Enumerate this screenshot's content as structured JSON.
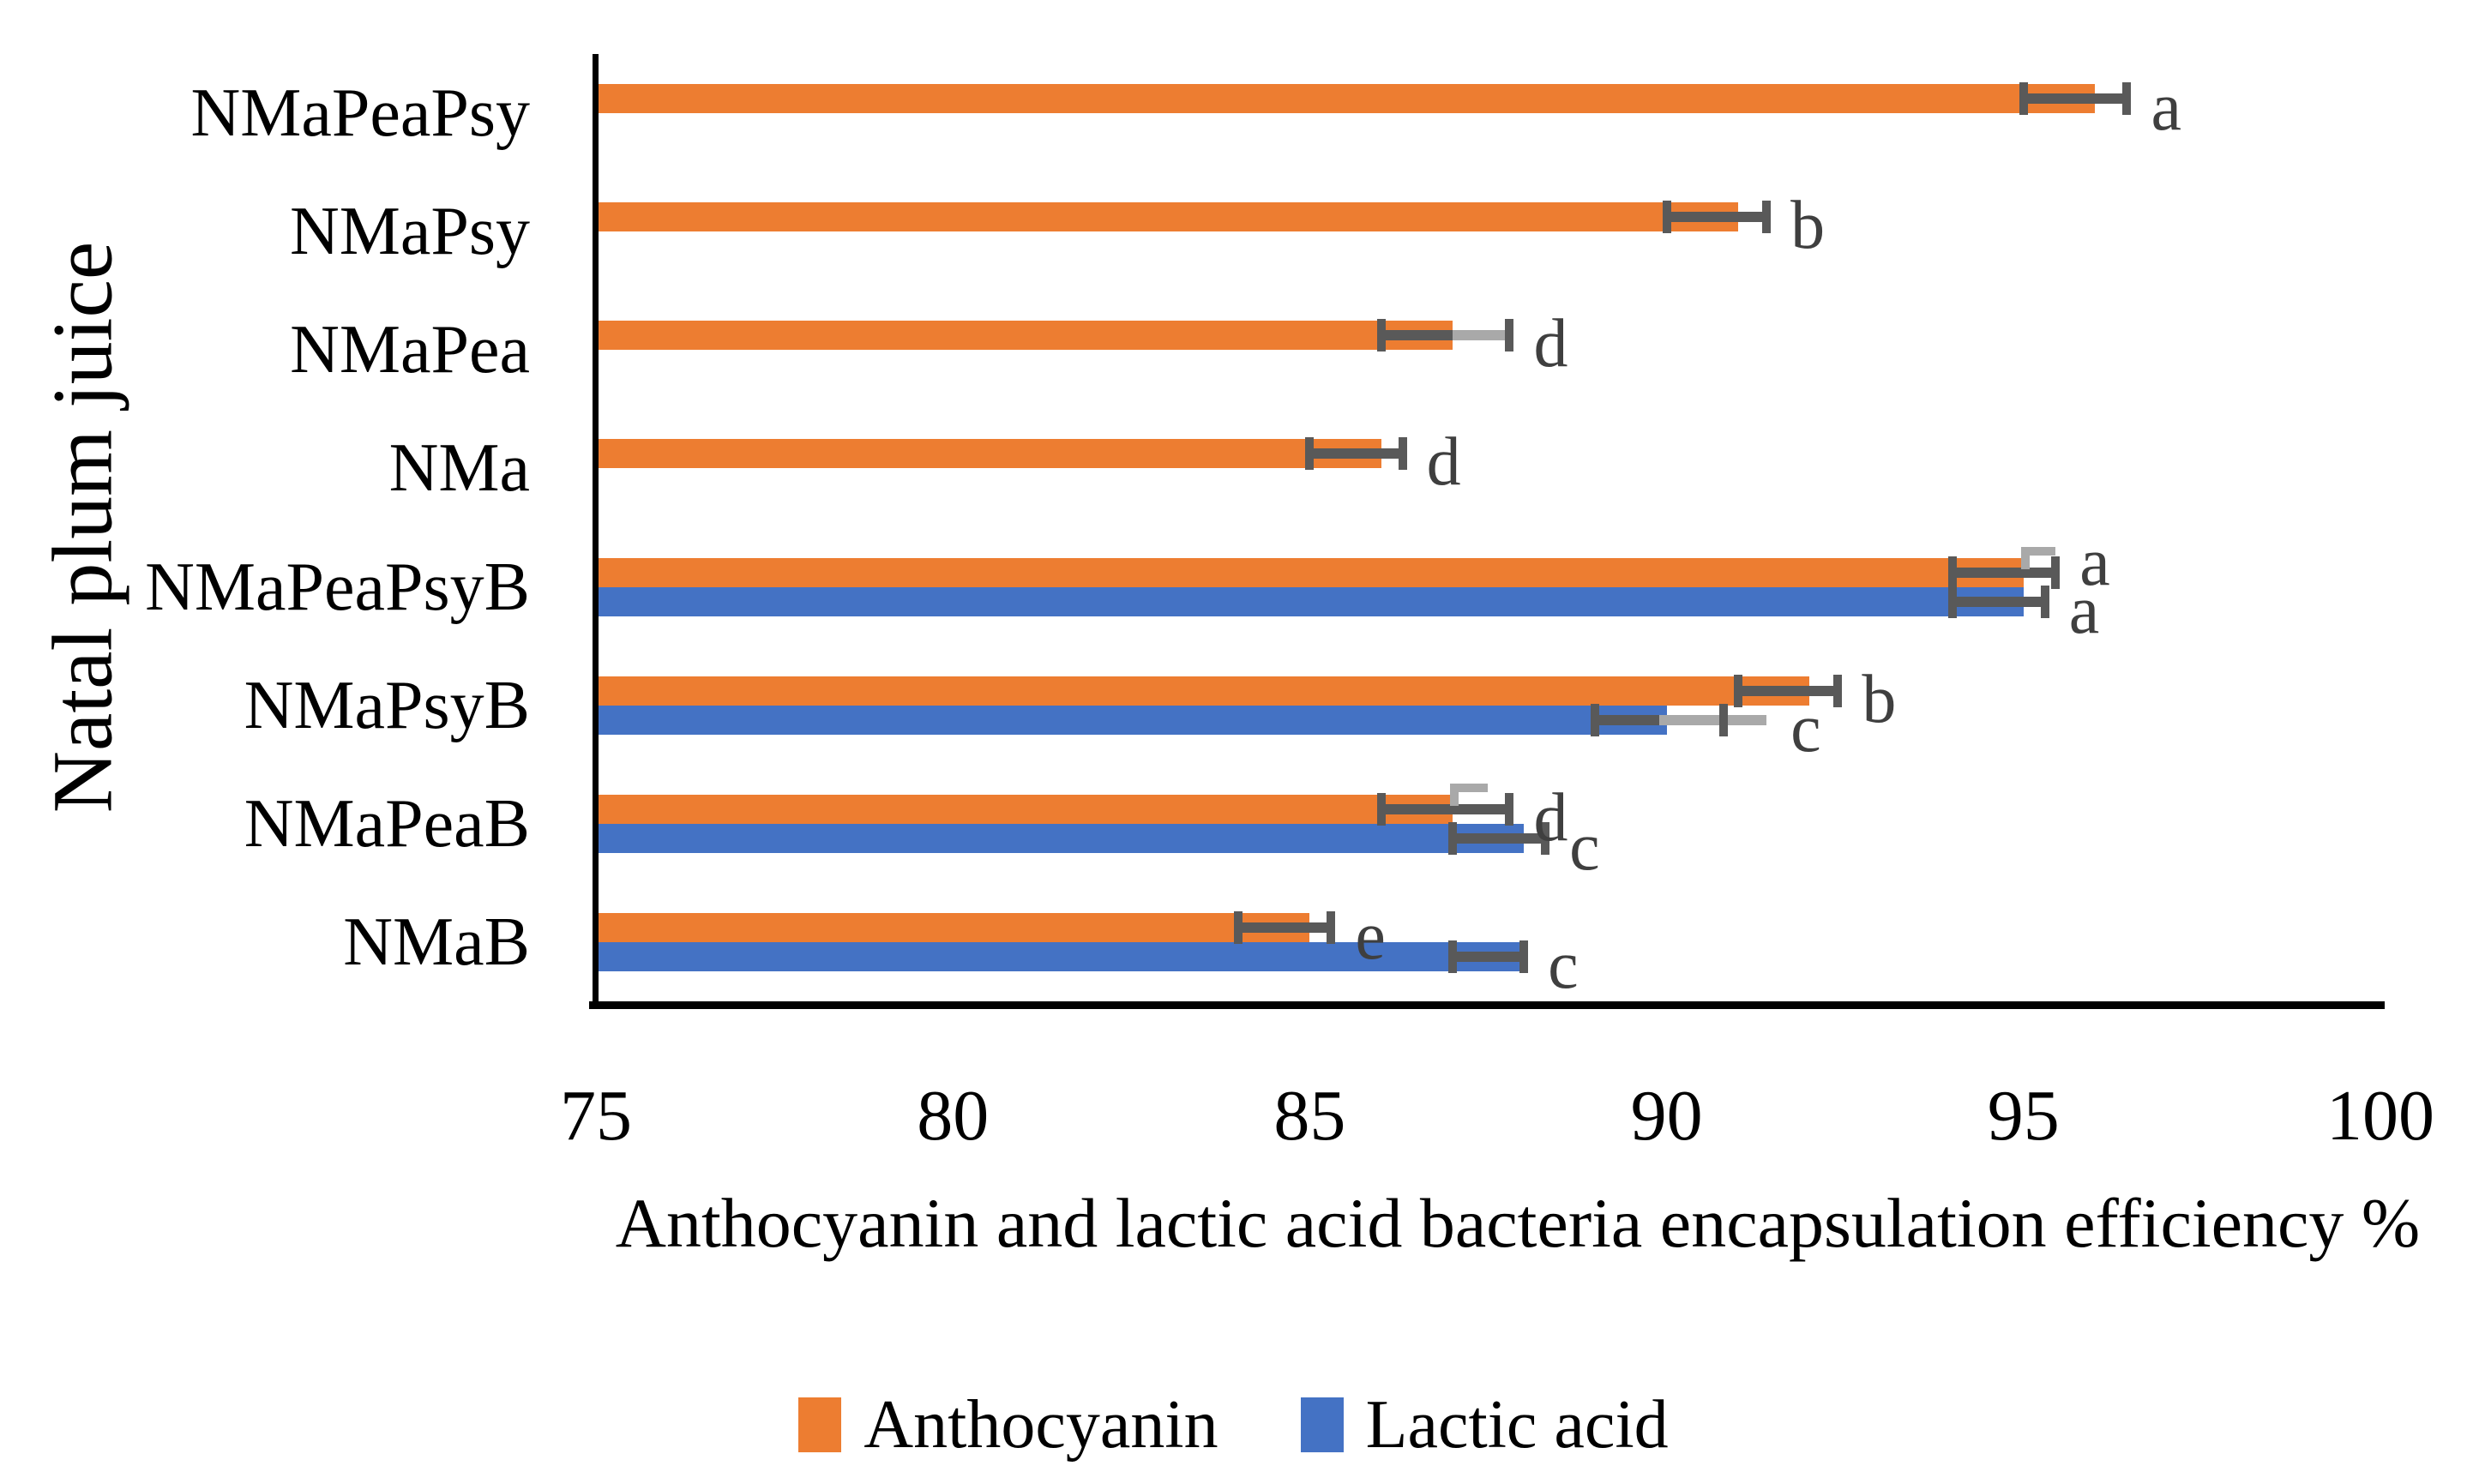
{
  "figure": {
    "background": "#FFFFFF",
    "axis_color": "#000000",
    "letter_color": "#3F3F3F",
    "error_bar_color": "#595959",
    "error_bar_secondary_color": "#A9A9A9"
  },
  "chart_data": {
    "type": "bar",
    "orientation": "horizontal",
    "title": "",
    "xlabel": "Anthocyanin and lactic acid bacteria encapsulation efficiency %",
    "ylabel": "Natal plum juice",
    "xlim": [
      75,
      100
    ],
    "x_ticks": [
      "75",
      "80",
      "85",
      "90",
      "95",
      "100"
    ],
    "grid": false,
    "legend_position": "bottom",
    "series": [
      {
        "key": "anthocyanin",
        "name": "Anthocyanin",
        "color": "#ED7D31"
      },
      {
        "key": "lactic",
        "name": "Lactic acid",
        "color": "#4472C4"
      }
    ],
    "categories": [
      "NMaPeaPsy",
      "NMaPsy",
      "NMaPea",
      "NMa",
      "NMaPeaPsyB",
      "NMaPsyB",
      "NMaPeaB",
      "NMaB"
    ],
    "bars": [
      {
        "category": "NMaPeaPsy",
        "anthocyanin": {
          "value": 96,
          "error": [
            95.0,
            96.45
          ],
          "letter": "a"
        }
      },
      {
        "category": "NMaPsy",
        "anthocyanin": {
          "value": 91,
          "error": [
            90.0,
            91.4
          ],
          "letter": "b"
        }
      },
      {
        "category": "NMaPea",
        "anthocyanin": {
          "value": 87,
          "error": [
            86.0,
            87.8
          ],
          "gray_line": [
            87.0,
            87.75
          ],
          "letter": "d"
        }
      },
      {
        "category": "NMa",
        "anthocyanin": {
          "value": 86,
          "error": [
            85.0,
            86.3
          ],
          "letter": "d"
        }
      },
      {
        "category": "NMaPeaPsyB",
        "anthocyanin": {
          "value": 95,
          "error": [
            94.0,
            95.45
          ],
          "gray_bracket": [
            95.0,
            95.45
          ],
          "letter": "a",
          "letter_offset": -12
        },
        "lactic": {
          "value": 95,
          "error": [
            94.0,
            95.3
          ],
          "letter": "a"
        }
      },
      {
        "category": "NMaPsyB",
        "anthocyanin": {
          "value": 92,
          "error": [
            91.0,
            92.4
          ],
          "letter": "b"
        },
        "lactic": {
          "value": 90,
          "error": [
            89.0,
            90.8
          ],
          "gray_line": [
            89.9,
            91.4
          ],
          "letter": "c"
        }
      },
      {
        "category": "NMaPeaB",
        "anthocyanin": {
          "value": 87,
          "error": [
            86.0,
            87.8
          ],
          "gray_bracket": [
            87.0,
            87.5
          ],
          "letter": "d"
        },
        "lactic": {
          "value": 88,
          "error": [
            87.0,
            88.3
          ],
          "letter": "c"
        }
      },
      {
        "category": "NMaB",
        "anthocyanin": {
          "value": 85,
          "error": [
            84.0,
            85.3
          ],
          "letter": "e"
        },
        "lactic": {
          "value": 88,
          "error": [
            87.0,
            88.0
          ],
          "letter": "c"
        }
      }
    ]
  }
}
